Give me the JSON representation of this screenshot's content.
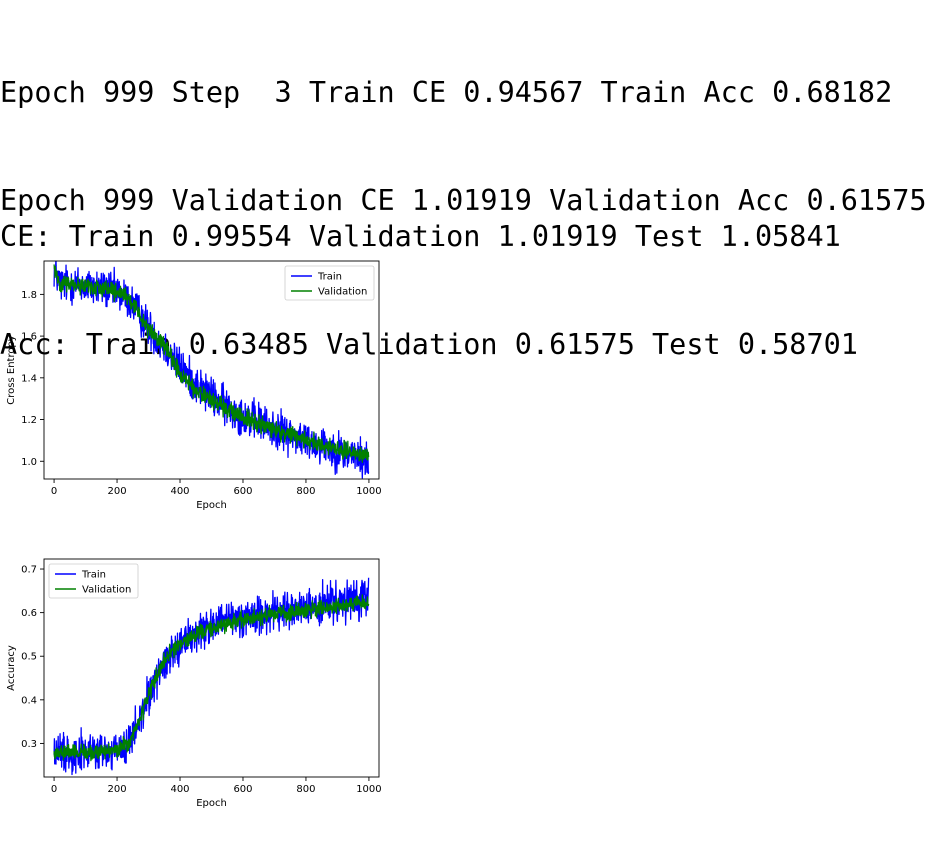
{
  "console_top": [
    "Epoch 999 Step  3 Train CE 0.94567 Train Acc 0.68182",
    "Epoch 999 Validation CE 1.01919 Validation Acc 0.61575"
  ],
  "console_bottom": [
    "CE: Train 0.99554 Validation 1.01919 Test 1.05841",
    "Acc: Train 0.63485 Validation 0.61575 Test 0.58701"
  ],
  "colors": {
    "train": "#0000ff",
    "validation": "#008000"
  },
  "chart_data": [
    {
      "id": "ce",
      "type": "line",
      "title": "",
      "xlabel": "Epoch",
      "ylabel": "Cross Entropy",
      "xlim": [
        -32,
        1032
      ],
      "ylim": [
        0.915,
        1.96
      ],
      "xticks": [
        0,
        200,
        400,
        600,
        800,
        1000
      ],
      "xtick_labels": [
        "0",
        "200",
        "400",
        "600",
        "800",
        "1000"
      ],
      "yticks": [
        1.0,
        1.2,
        1.4,
        1.6,
        1.8
      ],
      "ytick_labels": [
        "1.0",
        "1.2",
        "1.4",
        "1.6",
        "1.8"
      ],
      "grid": false,
      "legend": "top-right",
      "series": [
        {
          "name": "Train",
          "color": "#0000ff",
          "noise": 0.045,
          "points": [
            [
              0,
              1.92
            ],
            [
              20,
              1.85
            ],
            [
              60,
              1.85
            ],
            [
              100,
              1.84
            ],
            [
              150,
              1.83
            ],
            [
              200,
              1.81
            ],
            [
              240,
              1.77
            ],
            [
              260,
              1.73
            ],
            [
              300,
              1.64
            ],
            [
              350,
              1.55
            ],
            [
              400,
              1.45
            ],
            [
              450,
              1.37
            ],
            [
              500,
              1.31
            ],
            [
              550,
              1.26
            ],
            [
              600,
              1.22
            ],
            [
              650,
              1.19
            ],
            [
              700,
              1.15
            ],
            [
              750,
              1.13
            ],
            [
              800,
              1.1
            ],
            [
              850,
              1.08
            ],
            [
              900,
              1.05
            ],
            [
              950,
              1.03
            ],
            [
              999,
              1.0
            ]
          ],
          "final": 0.95
        },
        {
          "name": "Validation",
          "color": "#008000",
          "noise": 0.02,
          "points": [
            [
              0,
              1.93
            ],
            [
              20,
              1.85
            ],
            [
              60,
              1.85
            ],
            [
              100,
              1.84
            ],
            [
              150,
              1.83
            ],
            [
              200,
              1.81
            ],
            [
              240,
              1.77
            ],
            [
              260,
              1.73
            ],
            [
              300,
              1.64
            ],
            [
              350,
              1.55
            ],
            [
              400,
              1.42
            ],
            [
              450,
              1.34
            ],
            [
              500,
              1.29
            ],
            [
              550,
              1.25
            ],
            [
              600,
              1.21
            ],
            [
              650,
              1.18
            ],
            [
              700,
              1.15
            ],
            [
              750,
              1.13
            ],
            [
              800,
              1.1
            ],
            [
              850,
              1.08
            ],
            [
              900,
              1.06
            ],
            [
              950,
              1.04
            ],
            [
              999,
              1.02
            ]
          ],
          "final": 1.02
        }
      ]
    },
    {
      "id": "acc",
      "type": "line",
      "title": "",
      "xlabel": "Epoch",
      "ylabel": "Accuracy",
      "xlim": [
        -32,
        1032
      ],
      "ylim": [
        0.223,
        0.723
      ],
      "xticks": [
        0,
        200,
        400,
        600,
        800,
        1000
      ],
      "xtick_labels": [
        "0",
        "200",
        "400",
        "600",
        "800",
        "1000"
      ],
      "yticks": [
        0.3,
        0.4,
        0.5,
        0.6,
        0.7
      ],
      "ytick_labels": [
        "0.3",
        "0.4",
        "0.5",
        "0.6",
        "0.7"
      ],
      "grid": false,
      "legend": "top-left",
      "series": [
        {
          "name": "Train",
          "color": "#0000ff",
          "noise": 0.022,
          "points": [
            [
              0,
              0.28
            ],
            [
              100,
              0.28
            ],
            [
              200,
              0.28
            ],
            [
              240,
              0.3
            ],
            [
              270,
              0.35
            ],
            [
              300,
              0.41
            ],
            [
              330,
              0.46
            ],
            [
              360,
              0.5
            ],
            [
              400,
              0.53
            ],
            [
              450,
              0.55
            ],
            [
              500,
              0.57
            ],
            [
              550,
              0.58
            ],
            [
              600,
              0.59
            ],
            [
              650,
              0.595
            ],
            [
              700,
              0.6
            ],
            [
              750,
              0.605
            ],
            [
              800,
              0.61
            ],
            [
              850,
              0.615
            ],
            [
              900,
              0.62
            ],
            [
              950,
              0.625
            ],
            [
              999,
              0.63
            ]
          ],
          "final": 0.68
        },
        {
          "name": "Validation",
          "color": "#008000",
          "noise": 0.009,
          "points": [
            [
              0,
              0.28
            ],
            [
              100,
              0.28
            ],
            [
              200,
              0.285
            ],
            [
              240,
              0.305
            ],
            [
              270,
              0.35
            ],
            [
              300,
              0.41
            ],
            [
              330,
              0.46
            ],
            [
              360,
              0.5
            ],
            [
              400,
              0.53
            ],
            [
              450,
              0.55
            ],
            [
              500,
              0.565
            ],
            [
              550,
              0.575
            ],
            [
              600,
              0.585
            ],
            [
              650,
              0.59
            ],
            [
              700,
              0.595
            ],
            [
              750,
              0.6
            ],
            [
              800,
              0.605
            ],
            [
              850,
              0.61
            ],
            [
              900,
              0.615
            ],
            [
              950,
              0.62
            ],
            [
              999,
              0.62
            ]
          ],
          "final": 0.62
        }
      ]
    }
  ]
}
